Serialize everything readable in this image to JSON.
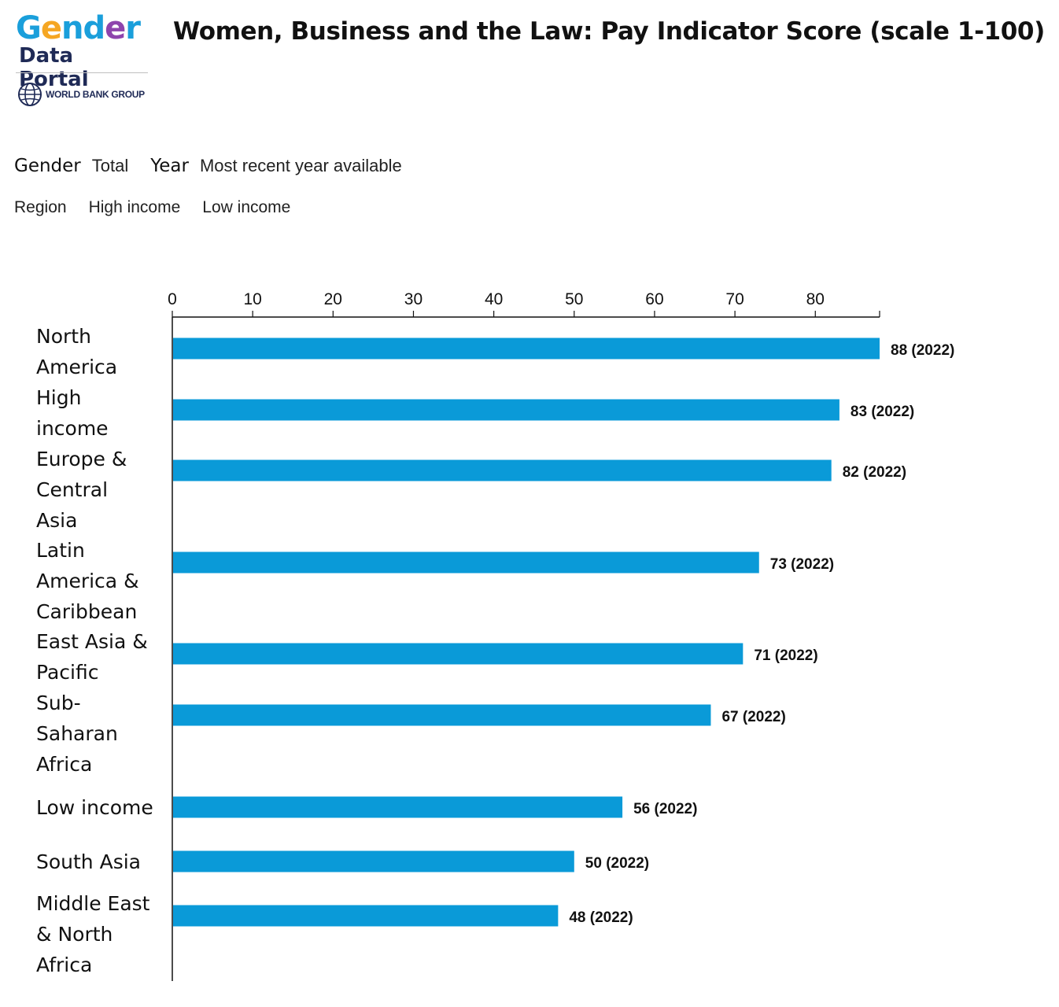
{
  "logo": {
    "line1": [
      "G",
      "e",
      "n",
      "d",
      "e",
      "r"
    ],
    "line2": "Data Portal",
    "org": "WORLD BANK GROUP",
    "colors": {
      "blue": "#1a9fdb",
      "yellow": "#f5a623",
      "purple": "#8e44ad",
      "navy": "#1f2a56"
    }
  },
  "title": "Women, Business and the Law: Pay Indicator Score (scale 1-100)",
  "filters": {
    "gender_label": "Gender",
    "gender_value": "Total",
    "year_label": "Year",
    "year_value": "Most recent year available",
    "regions": [
      "Region",
      "High income",
      "Low income"
    ]
  },
  "chart_data": {
    "type": "bar",
    "orientation": "horizontal",
    "title": "",
    "xlim": [
      0,
      88
    ],
    "ticks": [
      0,
      10,
      20,
      30,
      40,
      50,
      60,
      70,
      80
    ],
    "bar_color": "#0a9ad8",
    "categories": [
      {
        "label": [
          "North",
          "America"
        ],
        "value": 88,
        "year": "2022",
        "data_label": "88 (2022)"
      },
      {
        "label": [
          "High",
          "income"
        ],
        "value": 83,
        "year": "2022",
        "data_label": "83 (2022)"
      },
      {
        "label": [
          "Europe &",
          "Central",
          "Asia"
        ],
        "value": 82,
        "year": "2022",
        "data_label": "82 (2022)"
      },
      {
        "label": [
          "Latin",
          "America &",
          "Caribbean"
        ],
        "value": 73,
        "year": "2022",
        "data_label": "73 (2022)"
      },
      {
        "label": [
          "East Asia &",
          "Pacific"
        ],
        "value": 71,
        "year": "2022",
        "data_label": "71 (2022)"
      },
      {
        "label": [
          "Sub-",
          "Saharan",
          "Africa"
        ],
        "value": 67,
        "year": "2022",
        "data_label": "67 (2022)"
      },
      {
        "label": [
          "Low income"
        ],
        "value": 56,
        "year": "2022",
        "data_label": "56 (2022)"
      },
      {
        "label": [
          "South Asia"
        ],
        "value": 50,
        "year": "2022",
        "data_label": "50 (2022)"
      },
      {
        "label": [
          "Middle East",
          "& North",
          "Africa"
        ],
        "value": 48,
        "year": "2022",
        "data_label": "48 (2022)"
      }
    ]
  }
}
